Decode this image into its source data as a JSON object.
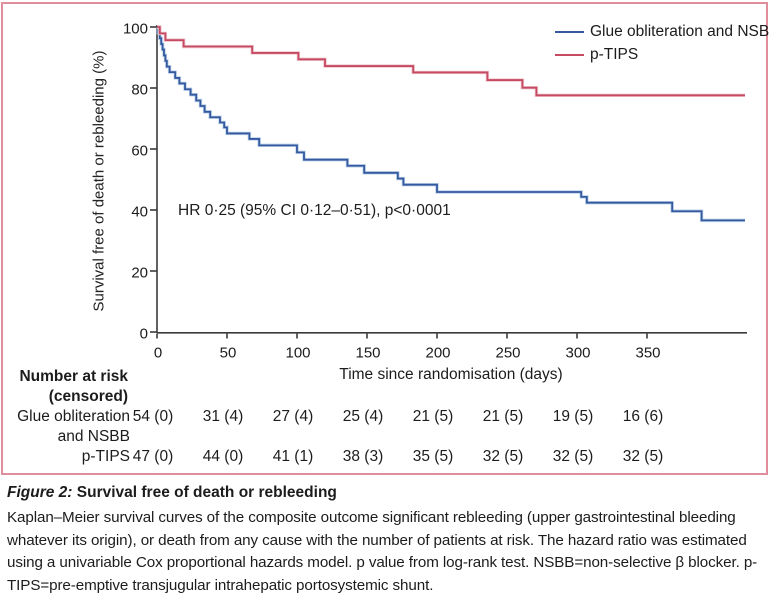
{
  "figure": {
    "border_color": "#e08e9b",
    "annotation": "HR 0·25 (95% CI 0·12–0·51), p<0·0001"
  },
  "chart_data": {
    "type": "line",
    "subtype": "kaplan-meier-step-curves",
    "xlabel": "Time since randomisation (days)",
    "ylabel": "Survival free of death or rebleeding (%)",
    "xlim": [
      0,
      420
    ],
    "ylim": [
      0,
      100
    ],
    "x_ticks": [
      0,
      50,
      100,
      150,
      200,
      250,
      300,
      350
    ],
    "y_ticks": [
      0,
      20,
      40,
      60,
      80,
      100
    ],
    "grid": false,
    "legend_position": "top-right",
    "annotation": "HR 0·25 (95% CI 0·12–0·51), p<0·0001",
    "series": [
      {
        "name": "Glue obliteration and NSBB",
        "color": "#35599f",
        "halo": "#bdd2ea",
        "end_x": 420,
        "points": [
          [
            0,
            100
          ],
          [
            1,
            98.1
          ],
          [
            2,
            96.3
          ],
          [
            3,
            94.4
          ],
          [
            4,
            92.6
          ],
          [
            5,
            90.7
          ],
          [
            6,
            88.9
          ],
          [
            7,
            87.0
          ],
          [
            9,
            85.2
          ],
          [
            13,
            83.3
          ],
          [
            16,
            81.5
          ],
          [
            20,
            79.6
          ],
          [
            24,
            77.8
          ],
          [
            28,
            75.9
          ],
          [
            31,
            74.1
          ],
          [
            34,
            72.2
          ],
          [
            38,
            70.4
          ],
          [
            45,
            68.7
          ],
          [
            48,
            67.1
          ],
          [
            50,
            65.1
          ],
          [
            66,
            63.3
          ],
          [
            73,
            61.2
          ],
          [
            100,
            58.9
          ],
          [
            105,
            56.5
          ],
          [
            136,
            54.5
          ],
          [
            148,
            52.2
          ],
          [
            172,
            50.3
          ],
          [
            176,
            48.3
          ],
          [
            200,
            45.9
          ],
          [
            303,
            44.3
          ],
          [
            307,
            42.4
          ],
          [
            368,
            39.6
          ],
          [
            389,
            36.6
          ]
        ]
      },
      {
        "name": "p-TIPS",
        "color": "#c64a62",
        "halo": "#eec6cd",
        "end_x": 420,
        "points": [
          [
            0,
            100
          ],
          [
            2,
            97.9
          ],
          [
            6,
            95.7
          ],
          [
            19,
            93.6
          ],
          [
            68,
            91.5
          ],
          [
            101,
            89.4
          ],
          [
            120,
            87.2
          ],
          [
            183,
            85.1
          ],
          [
            236,
            82.6
          ],
          [
            261,
            80.1
          ],
          [
            271,
            77.6
          ]
        ]
      }
    ]
  },
  "risk_table": {
    "header_line1": "Number at risk",
    "header_line2": "(censored)",
    "rows": [
      {
        "label_line1": "Glue obliteration",
        "label_line2": "and NSBB",
        "values": [
          "54 (0)",
          "31 (4)",
          "27 (4)",
          "25 (4)",
          "21 (5)",
          "21 (5)",
          "19 (5)",
          "16 (6)"
        ]
      },
      {
        "label_line1": "p-TIPS",
        "label_line2": "",
        "values": [
          "47 (0)",
          "44 (0)",
          "41 (1)",
          "38 (3)",
          "35 (5)",
          "32 (5)",
          "32 (5)",
          "32 (5)"
        ]
      }
    ]
  },
  "caption": {
    "label": "Figure 2:",
    "title": " Survival free of death or rebleeding",
    "body": "Kaplan–Meier survival curves of the composite outcome significant rebleeding (upper gastrointestinal bleeding whatever its origin), or death from any cause with the number of patients at risk. The hazard ratio was estimated using a univariable Cox proportional hazards model. p value from log-rank test. NSBB=non-selective β blocker. p-TIPS=pre-emptive transjugular intrahepatic portosystemic shunt."
  }
}
